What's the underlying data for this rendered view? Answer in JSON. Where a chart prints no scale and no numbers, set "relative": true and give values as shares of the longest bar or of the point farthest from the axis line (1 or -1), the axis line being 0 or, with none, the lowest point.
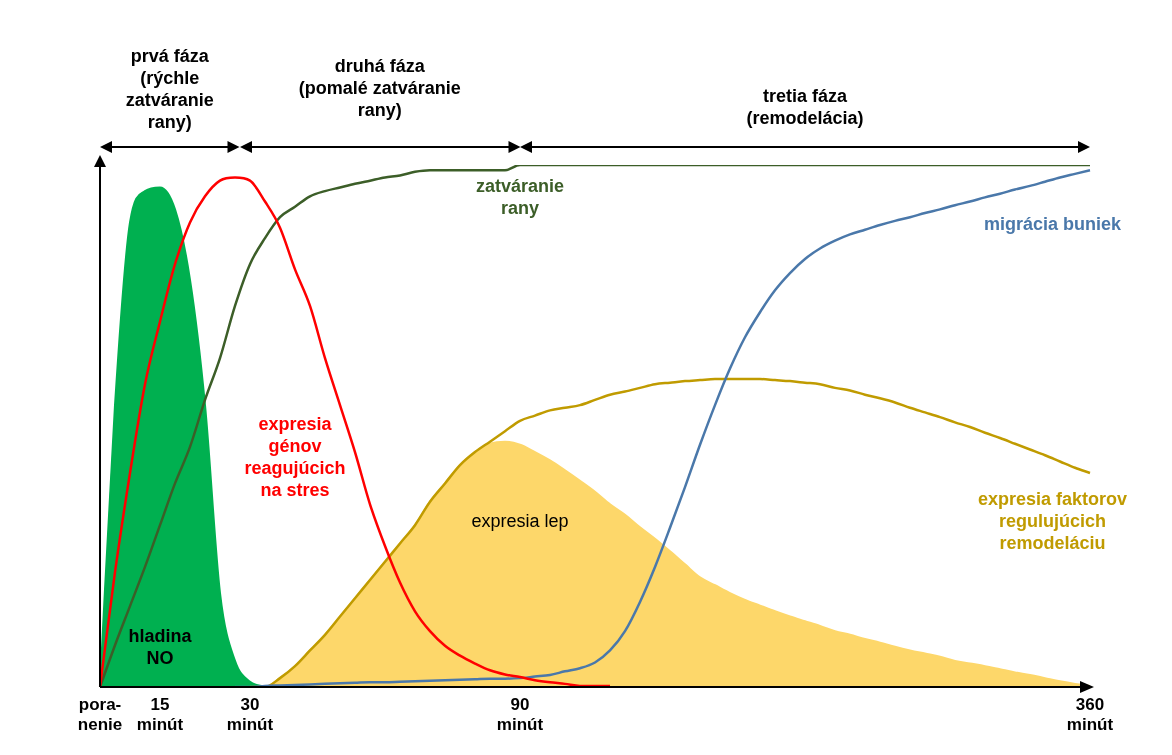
{
  "chart_data": {
    "type": "area",
    "relative": true,
    "grid": false,
    "legend": false,
    "marker": "none",
    "tick_labels": "x",
    "categories": [
      "pora-\nnenie",
      null,
      null,
      null,
      "15\nminút",
      null,
      null,
      null,
      null,
      null,
      "30\nminút",
      null,
      null,
      null,
      null,
      null,
      null,
      null,
      null,
      null,
      null,
      null,
      null,
      null,
      null,
      null,
      null,
      null,
      "90\nminút",
      null,
      null,
      null,
      null,
      null,
      null,
      null,
      null,
      null,
      null,
      null,
      null,
      null,
      null,
      null,
      null,
      null,
      null,
      null,
      null,
      null,
      null,
      null,
      null,
      null,
      null,
      null,
      null,
      null,
      null,
      null,
      null,
      null,
      null,
      null,
      null,
      null,
      "360\nminút"
    ],
    "annotations": [
      "prvá fáza\n(rýchle\nzatváranie\nrany)",
      "druhá fáza\n(pomalé zatváranie\nrany)",
      "tretia fáza\n(remodelácia)"
    ],
    "series": [
      {
        "name": "hladina NO",
        "type": "area",
        "color": "#00b050",
        "values": [
          0,
          0.54,
          0.89,
          0.95,
          0.957,
          0.915,
          0.78,
          0.54,
          0.18,
          0.05,
          0.01,
          0,
          null,
          null,
          null,
          null,
          null,
          null,
          null,
          null,
          null,
          null,
          null,
          null,
          null,
          null,
          null,
          null,
          null,
          null,
          null,
          null,
          null,
          null,
          null,
          null,
          null,
          null,
          null,
          null,
          null,
          null,
          null,
          null,
          null,
          null,
          null,
          null,
          null,
          null,
          null,
          null,
          null,
          null,
          null,
          null,
          null,
          null,
          null,
          null,
          null,
          null,
          null,
          null,
          null,
          null,
          null
        ]
      },
      {
        "name": "expresia lep",
        "type": "area",
        "color": "#fdd76a",
        "values": [
          0,
          0,
          0,
          0,
          0,
          0,
          0,
          0,
          0,
          0,
          0,
          0,
          0.017,
          0.04,
          0.07,
          0.1,
          0.135,
          0.17,
          0.205,
          0.24,
          0.275,
          0.31,
          0.355,
          0.39,
          0.425,
          0.45,
          0.466,
          0.47,
          0.464,
          0.45,
          0.434,
          0.415,
          0.395,
          0.374,
          0.35,
          0.33,
          0.306,
          0.284,
          0.26,
          0.235,
          0.21,
          0.195,
          0.18,
          0.167,
          0.156,
          0.145,
          0.135,
          0.126,
          0.117,
          0.107,
          0.1,
          0.092,
          0.085,
          0.077,
          0.07,
          0.064,
          0.058,
          0.05,
          0.045,
          0.04,
          0.034,
          0.028,
          0.023,
          0.017,
          0.011,
          0.006,
          0.002
        ]
      },
      {
        "name": "expresia faktorov regulujúcich remodeláciu",
        "type": "line",
        "color": "#c09b00",
        "values": [
          null,
          null,
          null,
          null,
          null,
          null,
          null,
          null,
          null,
          null,
          0,
          0,
          0.017,
          0.04,
          0.07,
          0.1,
          0.135,
          0.17,
          0.205,
          0.24,
          0.275,
          0.31,
          0.355,
          0.39,
          0.425,
          0.45,
          0.47,
          0.49,
          0.51,
          0.52,
          0.53,
          0.535,
          0.54,
          0.55,
          0.56,
          0.566,
          0.573,
          0.58,
          0.583,
          0.586,
          0.588,
          0.59,
          0.59,
          0.59,
          0.59,
          0.588,
          0.586,
          0.583,
          0.58,
          0.573,
          0.568,
          0.56,
          0.553,
          0.545,
          0.535,
          0.526,
          0.517,
          0.507,
          0.498,
          0.487,
          0.477,
          0.466,
          0.455,
          0.444,
          0.432,
          0.42,
          0.41
        ]
      },
      {
        "name": "zatváranie rany",
        "type": "line",
        "color": "#3c5e28",
        "values": [
          0,
          0.08,
          0.155,
          0.23,
          0.31,
          0.39,
          0.46,
          0.55,
          0.63,
          0.73,
          0.81,
          0.86,
          0.9,
          0.92,
          0.94,
          0.95,
          0.957,
          0.964,
          0.97,
          0.976,
          0.98,
          0.987,
          0.99,
          0.99,
          0.99,
          0.99,
          0.99,
          0.99,
          1,
          1,
          1,
          1,
          1,
          1,
          1,
          1,
          1,
          1,
          1,
          1,
          1,
          1,
          1,
          1,
          1,
          1,
          1,
          1,
          1,
          1,
          1,
          1,
          1,
          1,
          1,
          1,
          1,
          1,
          1,
          1,
          1,
          1,
          1,
          1,
          1,
          1,
          1
        ]
      },
      {
        "name": "migrácia buniek",
        "type": "line",
        "color": "#4a78aa",
        "values": [
          null,
          null,
          null,
          null,
          null,
          null,
          null,
          null,
          null,
          0,
          0,
          0.002,
          0.003,
          0.004,
          0.005,
          0.006,
          0.007,
          0.008,
          0.009,
          0.009,
          0.01,
          0.011,
          0.012,
          0.013,
          0.014,
          0.015,
          0.016,
          0.016,
          0.017,
          0.02,
          0.023,
          0.03,
          0.036,
          0.047,
          0.07,
          0.107,
          0.163,
          0.23,
          0.305,
          0.383,
          0.464,
          0.54,
          0.61,
          0.67,
          0.718,
          0.76,
          0.793,
          0.82,
          0.84,
          0.855,
          0.867,
          0.876,
          0.885,
          0.893,
          0.9,
          0.908,
          0.915,
          0.923,
          0.93,
          0.938,
          0.945,
          0.953,
          0.96,
          0.968,
          0.976,
          0.983,
          0.99
        ]
      },
      {
        "name": "expresia génov reagujúcich na stres",
        "type": "line",
        "color": "#ff0000",
        "values": [
          0,
          0.22,
          0.41,
          0.58,
          0.7,
          0.81,
          0.89,
          0.94,
          0.97,
          0.976,
          0.97,
          0.93,
          0.88,
          0.8,
          0.73,
          0.63,
          0.54,
          0.45,
          0.35,
          0.27,
          0.2,
          0.145,
          0.107,
          0.079,
          0.06,
          0.045,
          0.032,
          0.024,
          0.019,
          0.013,
          0.009,
          0.006,
          0.002,
          0.002,
          0.002,
          null,
          null,
          null,
          null,
          null,
          null,
          null,
          null,
          null,
          null,
          null,
          null,
          null,
          null,
          null,
          null,
          null,
          null,
          null,
          null,
          null,
          null,
          null,
          null,
          null,
          null,
          null,
          null,
          null,
          null,
          null,
          null
        ]
      }
    ]
  }
}
